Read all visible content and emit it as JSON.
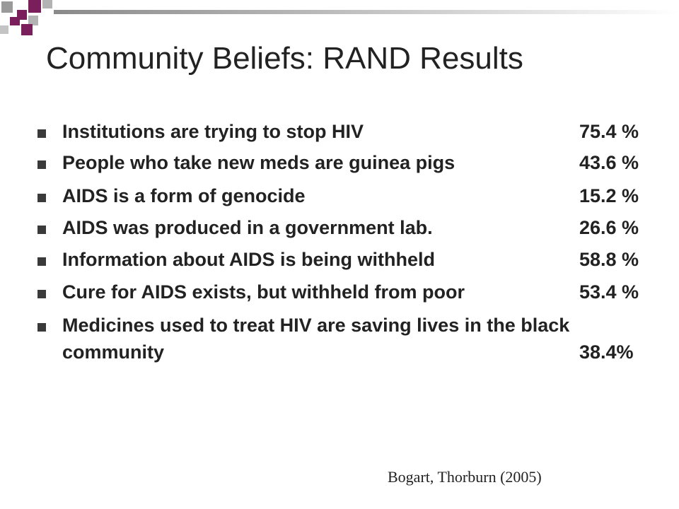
{
  "slide": {
    "title": "Community Beliefs: RAND Results",
    "bullets": [
      {
        "text": "Institutions are trying to stop HIV",
        "value": "75.4 %"
      },
      {
        "text": "People who take new meds are guinea pigs",
        "value": "43.6 %"
      },
      {
        "text": "AIDS is a form of genocide",
        "value": "15.2 %"
      },
      {
        "text": "AIDS was produced in a government lab.",
        "value": "26.6 %"
      },
      {
        "text": "Information about AIDS is being withheld",
        "value": "58.8 %"
      },
      {
        "text": "Cure for AIDS exists, but withheld from poor",
        "value": "53.4 %"
      },
      {
        "text": "Medicines used to treat HIV are saving lives in the black",
        "continuation": "community",
        "value": "38.4%"
      }
    ],
    "citation": "Bogart, Thorburn (2005)"
  },
  "colors": {
    "accent_purple": "#7a1f5c",
    "accent_gray": "#9a9a9a",
    "text": "#222222"
  }
}
